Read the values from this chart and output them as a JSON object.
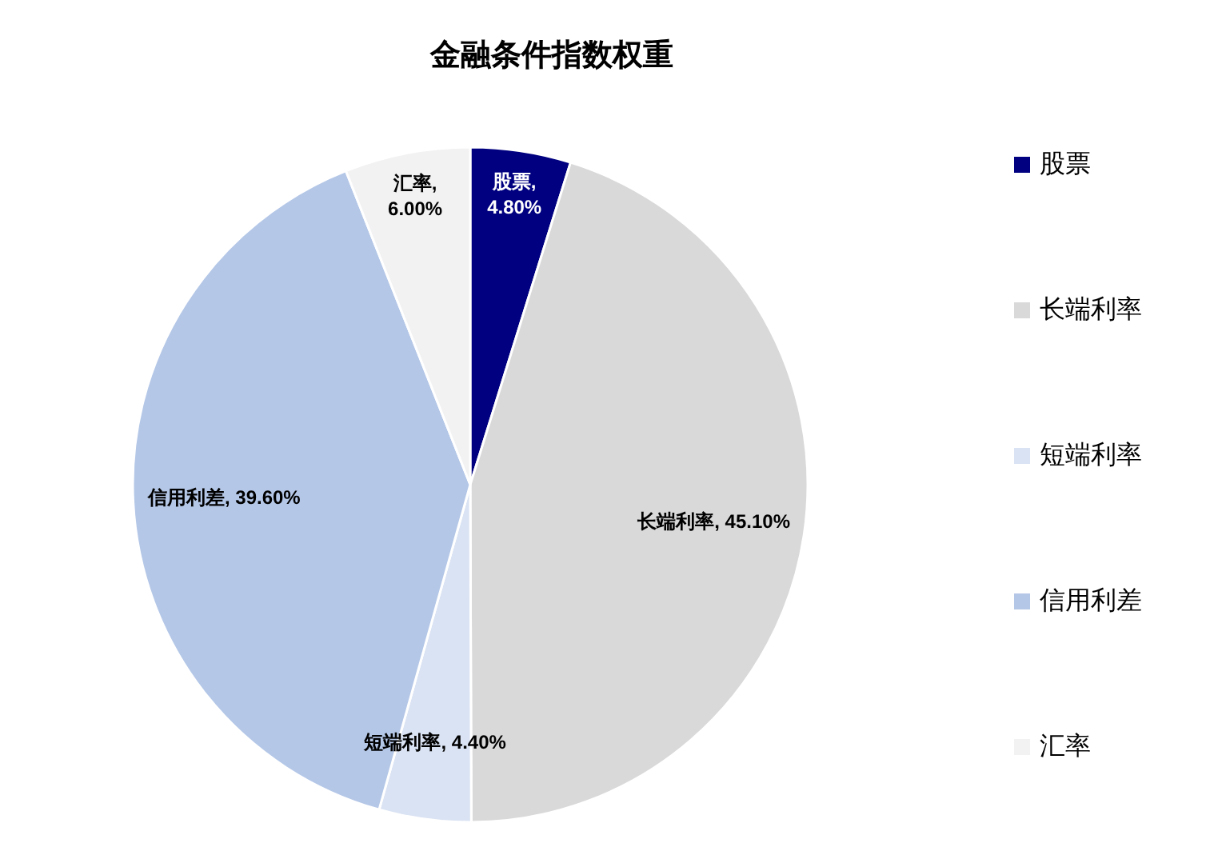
{
  "chart_data": {
    "type": "pie",
    "title": "金融条件指数权重",
    "categories": [
      "股票",
      "长端利率",
      "短端利率",
      "信用利差",
      "汇率"
    ],
    "values": [
      4.8,
      45.1,
      4.4,
      39.6,
      6.0
    ],
    "value_labels": [
      "股票, 4.80%",
      "长端利率, 45.10%",
      "短端利率, 4.40%",
      "信用利差, 39.60%",
      "汇率, 6.00%"
    ],
    "colors": [
      "#000080",
      "#d9d9d9",
      "#dae3f3",
      "#b4c7e7",
      "#f2f2f2"
    ],
    "legend": "right"
  }
}
